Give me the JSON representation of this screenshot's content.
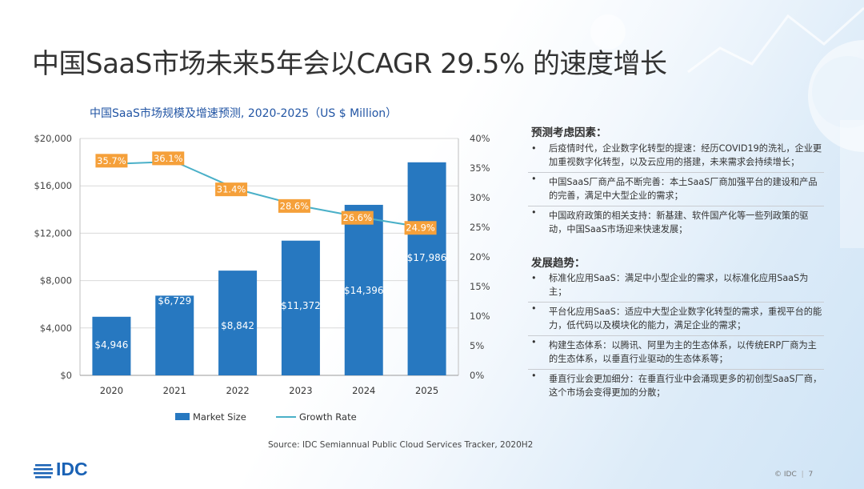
{
  "slide": {
    "title": "中国SaaS市场未来5年会以CAGR 29.5% 的速度增长",
    "source": "Source: IDC Semiannual Public Cloud Services Tracker, 2020H2",
    "logo": "IDC",
    "footer_copyright": "© IDC",
    "page_number": "7"
  },
  "factors": {
    "heading": "预测考虑因素：",
    "items": [
      "后疫情时代，企业数字化转型的提速：经历COVID19的洗礼，企业更加重视数字化转型，以及云应用的搭建，未来需求会持续增长；",
      "中国SaaS厂商产品不断完善：本土SaaS厂商加强平台的建设和产品的完善，满足中大型企业的需求；",
      "中国政府政策的相关支持：新基建、软件国产化等一些列政策的驱动，中国SaaS市场迎来快速发展；"
    ]
  },
  "trends": {
    "heading": "发展趋势：",
    "items": [
      "标准化应用SaaS：满足中小型企业的需求，以标准化应用SaaS为主；",
      "平台化应用SaaS：适应中大型企业数字化转型的需求，重视平台的能力，低代码以及模块化的能力，满足企业的需求；",
      "构建生态体系：以腾讯、阿里为主的生态体系，以传统ERP厂商为主的生态体系，以垂直行业驱动的生态体系等；",
      "垂直行业会更加细分：在垂直行业中会涌现更多的初创型SaaS厂商，这个市场会变得更加的分散；"
    ]
  },
  "chart_data": {
    "type": "bar",
    "title": "中国SaaS市场规模及增速预测, 2020-2025（US $ Million）",
    "categories": [
      "2020",
      "2021",
      "2022",
      "2023",
      "2024",
      "2025"
    ],
    "series": [
      {
        "name": "Market Size",
        "type": "bar",
        "axis": "left",
        "color": "#2778c0",
        "values": [
          4946,
          6729,
          8842,
          11372,
          14396,
          17986
        ],
        "labels": [
          "$4,946",
          "$6,729",
          "$8,842",
          "$11,372",
          "$14,396",
          "$17,986"
        ]
      },
      {
        "name": "Growth Rate",
        "type": "line",
        "axis": "right",
        "color": "#4ab0c8",
        "values": [
          35.7,
          36.1,
          31.4,
          28.6,
          26.6,
          24.9
        ],
        "labels": [
          "35.7%",
          "36.1%",
          "31.4%",
          "28.6%",
          "26.6%",
          "24.9%"
        ]
      }
    ],
    "left_axis": {
      "min": 0,
      "max": 20000,
      "ticks": [
        "$0",
        "$4,000",
        "$8,000",
        "$12,000",
        "$16,000",
        "$20,000"
      ]
    },
    "right_axis": {
      "min": 0,
      "max": 40,
      "ticks": [
        "0%",
        "5%",
        "10%",
        "15%",
        "20%",
        "25%",
        "30%",
        "35%",
        "40%"
      ]
    },
    "label_box_color": "#f5a03a",
    "legend_position": "bottom"
  }
}
